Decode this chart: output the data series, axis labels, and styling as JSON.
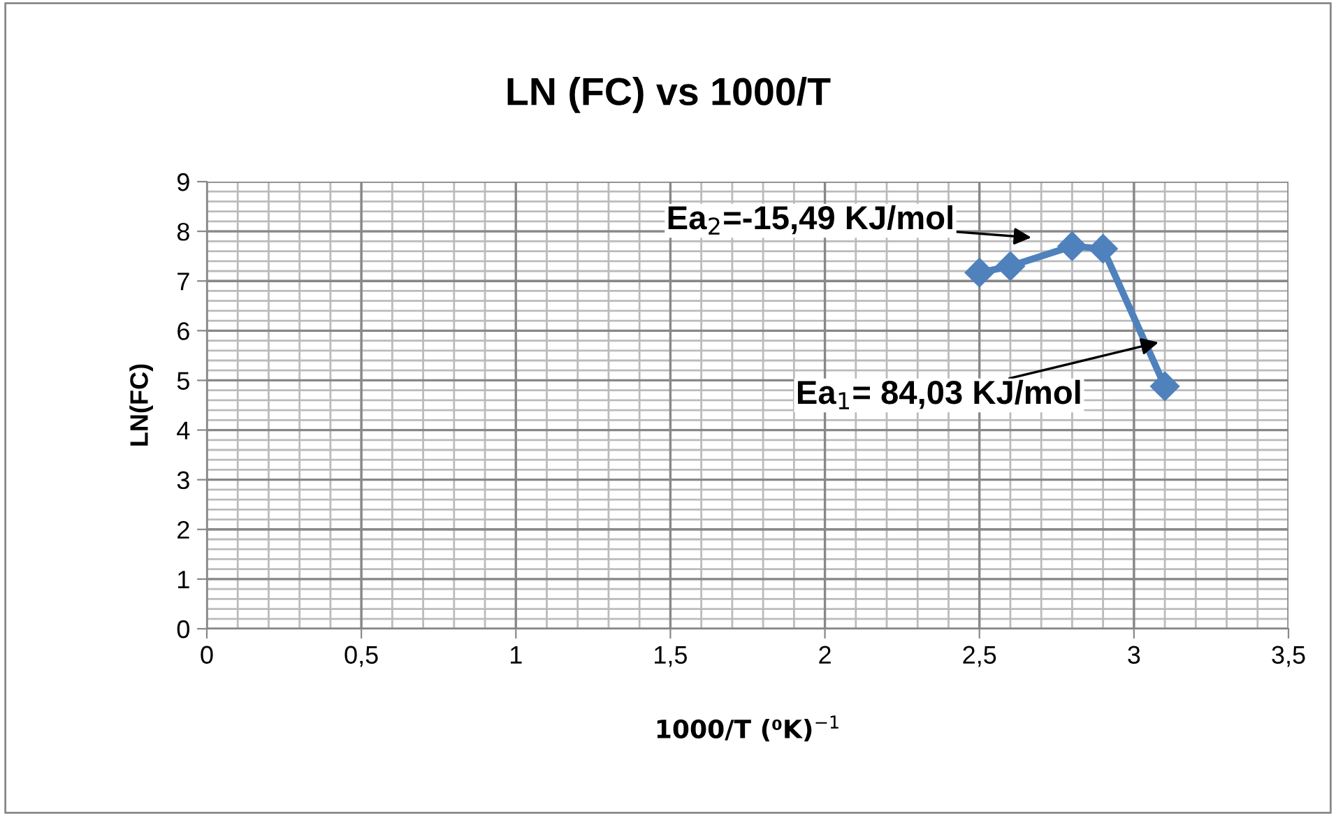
{
  "chart_data": {
    "type": "line",
    "title": "LN (FC) vs 1000/T",
    "xlabel": "1000/T (⁰K)$^{−1}$",
    "ylabel": "LN(FC)",
    "x": [
      2.5,
      2.6,
      2.8,
      2.9,
      3.1
    ],
    "series": [
      {
        "color": "#4f81bd",
        "values": [
          7.17,
          7.3,
          7.7,
          7.65,
          4.88
        ]
      }
    ],
    "marker": "diamond",
    "line_style": "solid",
    "grid": true,
    "xlim": [
      0,
      3.5
    ],
    "xticks": [
      0,
      {
        "value": 0.5,
        "label": "0,5"
      },
      1,
      {
        "value": 1.5,
        "label": "1,5"
      },
      2,
      {
        "value": 2.5,
        "label": "2,5"
      },
      3,
      {
        "value": 3.5,
        "label": "3,5"
      }
    ],
    "ylim": [
      0,
      9
    ],
    "yticks": [
      0,
      1,
      2,
      3,
      4,
      5,
      6,
      7,
      8,
      9
    ],
    "annotations": [
      "Ea$_{2}$=-15,49 KJ/mol",
      "Ea$_{1}$= 84,03 KJ/mol"
    ]
  }
}
